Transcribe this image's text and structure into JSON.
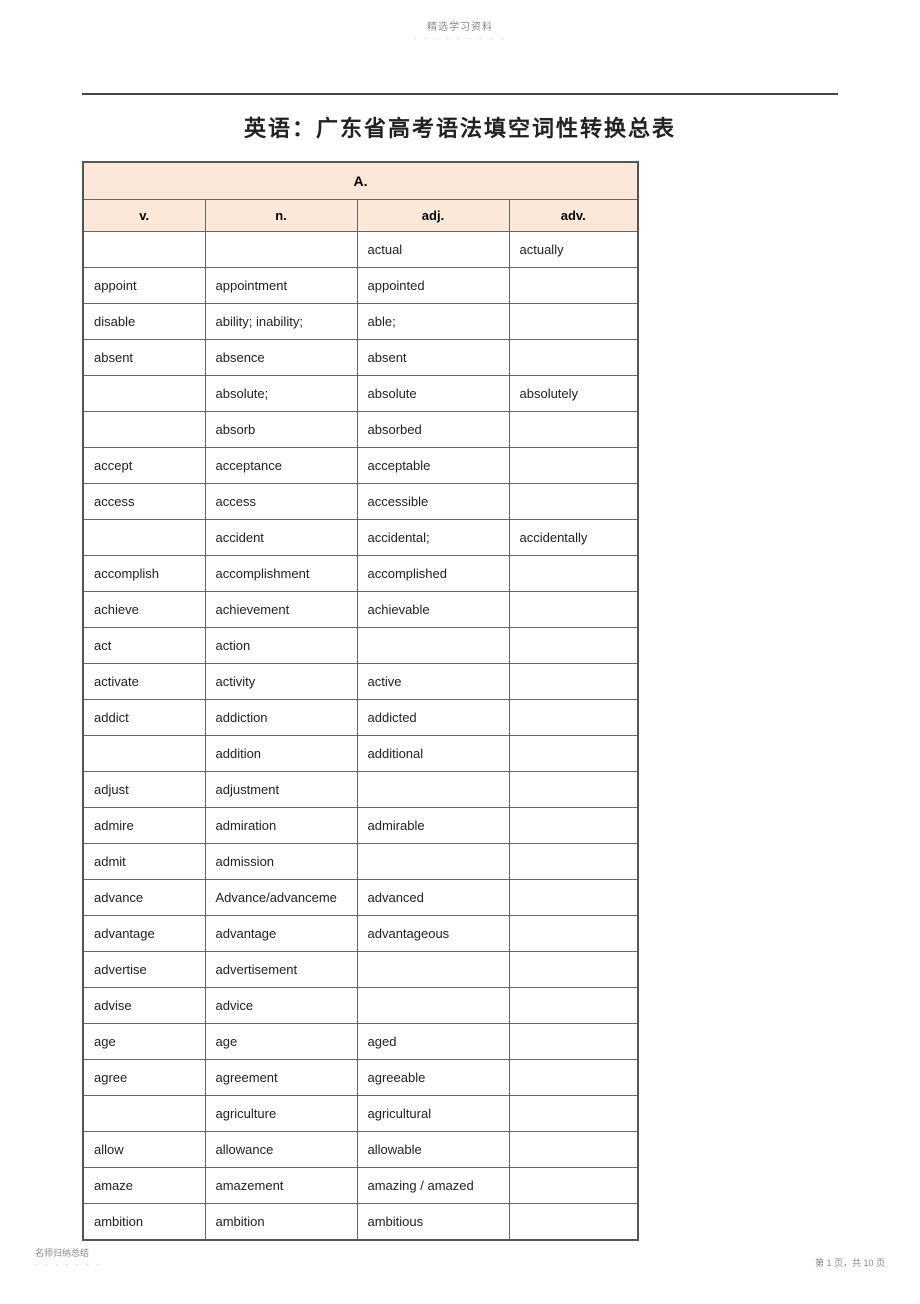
{
  "header": {
    "text": "精选学习资料",
    "dots": "- - - - - - - - -"
  },
  "title": "英语：广东省高考语法填空词性转换总表",
  "table": {
    "section": "A.",
    "columns": [
      "v.",
      "n.",
      "adj.",
      "adv."
    ],
    "rows": [
      [
        "",
        "",
        "actual",
        "actually"
      ],
      [
        "appoint",
        "appointment",
        "appointed",
        ""
      ],
      [
        "disable",
        "ability; inability;",
        "able;",
        ""
      ],
      [
        "absent",
        "absence",
        "absent",
        ""
      ],
      [
        "",
        "absolute;",
        "absolute",
        "absolutely"
      ],
      [
        "",
        "absorb",
        "absorbed",
        ""
      ],
      [
        "accept",
        "acceptance",
        "acceptable",
        ""
      ],
      [
        "access",
        "access",
        "accessible",
        ""
      ],
      [
        "",
        "accident",
        "accidental;",
        "accidentally"
      ],
      [
        "accomplish",
        "accomplishment",
        "accomplished",
        ""
      ],
      [
        "achieve",
        "achievement",
        "achievable",
        ""
      ],
      [
        "act",
        "action",
        "",
        ""
      ],
      [
        "activate",
        "activity",
        "active",
        ""
      ],
      [
        "addict",
        "addiction",
        "addicted",
        ""
      ],
      [
        "",
        "addition",
        "additional",
        ""
      ],
      [
        "adjust",
        "adjustment",
        "",
        ""
      ],
      [
        "admire",
        "admiration",
        "admirable",
        ""
      ],
      [
        "admit",
        "admission",
        "",
        ""
      ],
      [
        "advance",
        "Advance/advanceme",
        "advanced",
        ""
      ],
      [
        "advantage",
        "advantage",
        "advantageous",
        ""
      ],
      [
        "advertise",
        "advertisement",
        "",
        ""
      ],
      [
        "advise",
        "advice",
        "",
        ""
      ],
      [
        "age",
        "age",
        "aged",
        ""
      ],
      [
        "agree",
        "agreement",
        "agreeable",
        ""
      ],
      [
        "",
        "agriculture",
        "agricultural",
        ""
      ],
      [
        "allow",
        "allowance",
        "allowable",
        ""
      ],
      [
        "amaze",
        "amazement",
        "amazing / amazed",
        ""
      ],
      [
        "ambition",
        "ambition",
        "ambitious",
        ""
      ]
    ]
  },
  "footer": {
    "left": "名师归纳总结",
    "left_dots": "- - - - - - -",
    "right": "第 1 页，共 10 页"
  },
  "colors": {
    "header_bg": "#fce8d8",
    "border": "#666666",
    "text": "#222222",
    "muted": "#888888"
  }
}
